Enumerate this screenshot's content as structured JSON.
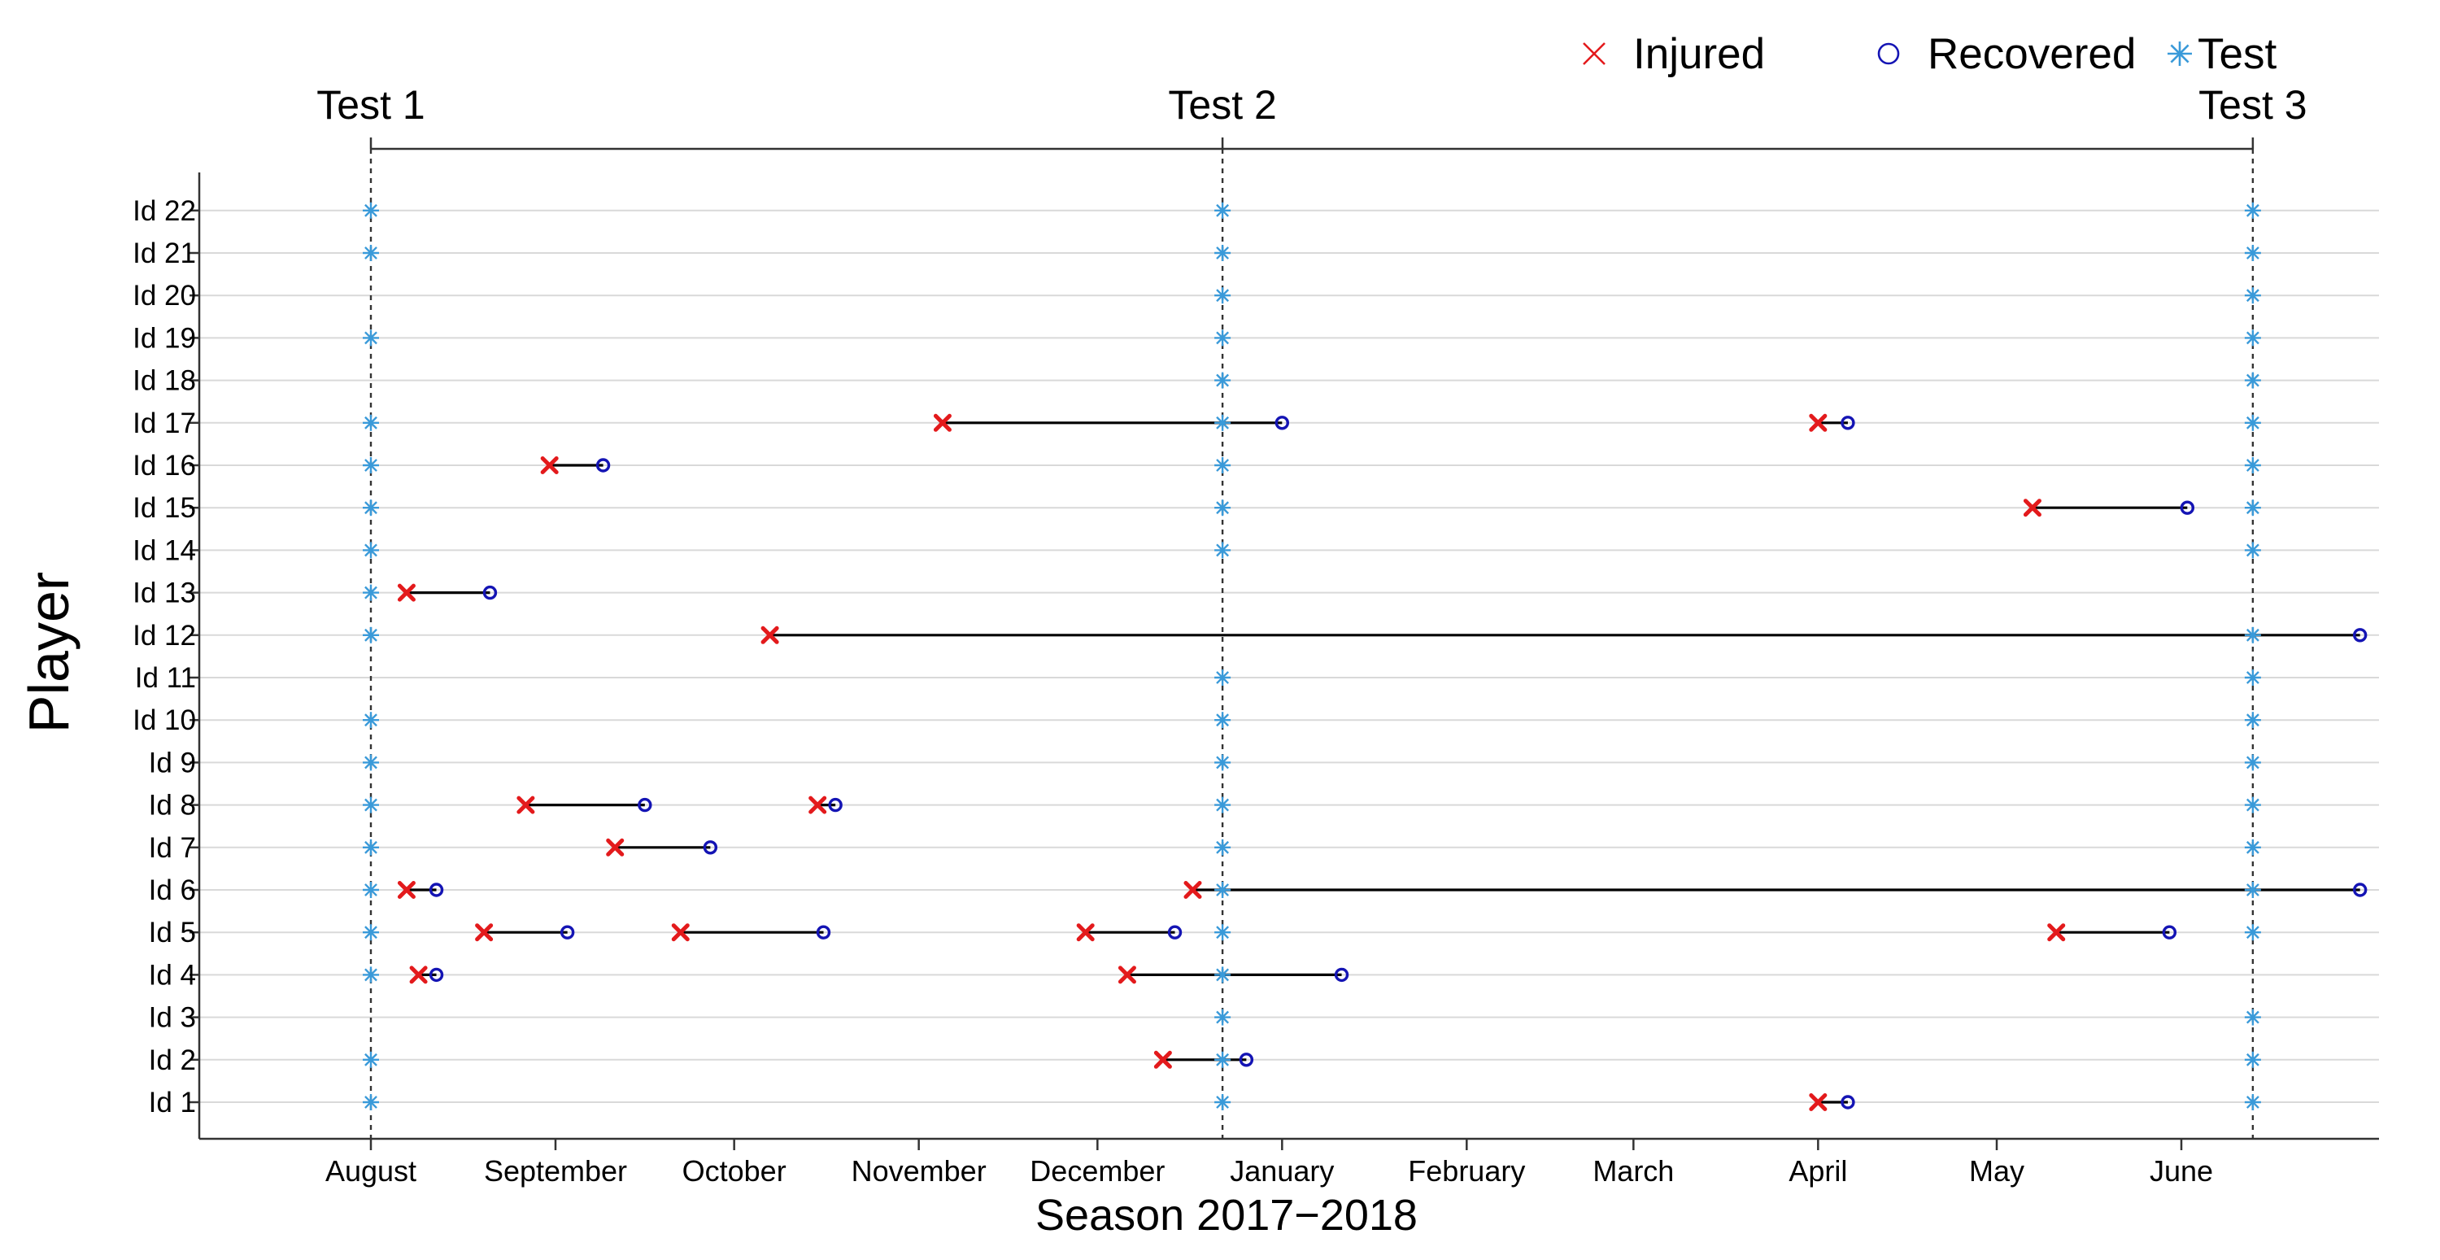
{
  "chart_data": {
    "type": "scatter",
    "title": "",
    "xlabel": "Season 2017−2018",
    "ylabel": "Player",
    "x_axis": {
      "ticks": [
        "2017-08-01",
        "2017-09-01",
        "2017-10-01",
        "2017-11-01",
        "2017-12-01",
        "2018-01-01",
        "2018-02-01",
        "2018-03-01",
        "2018-04-01",
        "2018-05-01",
        "2018-06-01"
      ],
      "tick_labels": [
        "August",
        "September",
        "October",
        "November",
        "December",
        "January",
        "February",
        "March",
        "April",
        "May",
        "June"
      ],
      "range": [
        "2017-07-03",
        "2018-07-14"
      ]
    },
    "players": [
      "Id 1",
      "Id 2",
      "Id 3",
      "Id 4",
      "Id 5",
      "Id 6",
      "Id 7",
      "Id 8",
      "Id 9",
      "Id 10",
      "Id 11",
      "Id 12",
      "Id 13",
      "Id 14",
      "Id 15",
      "Id 16",
      "Id 17",
      "Id 18",
      "Id 19",
      "Id 20",
      "Id 21",
      "Id 22"
    ],
    "tests": [
      {
        "label": "Test 1",
        "date": "2017-08-01"
      },
      {
        "label": "Test 2",
        "date": "2017-12-22"
      },
      {
        "label": "Test 3",
        "date": "2018-06-13"
      }
    ],
    "legend": {
      "position": "top-right",
      "items": [
        {
          "label": "Injured",
          "marker": "x",
          "color": "#e31a1c"
        },
        {
          "label": "Recovered",
          "marker": "circle",
          "color": "#1414b4"
        },
        {
          "label": "Test",
          "marker": "asterisk",
          "color": "#3a9ad9"
        }
      ]
    },
    "colors": {
      "injured": "#e31a1c",
      "recovered": "#1414b4",
      "test": "#3a9ad9",
      "span": "#000000",
      "grid": "#d9d9d9"
    },
    "test_attendance": {
      "Id 1": [
        1,
        2,
        3
      ],
      "Id 2": [
        1,
        2,
        3
      ],
      "Id 3": [
        2,
        3
      ],
      "Id 4": [
        1,
        2
      ],
      "Id 5": [
        1,
        2,
        3
      ],
      "Id 6": [
        1,
        2,
        3
      ],
      "Id 7": [
        1,
        2,
        3
      ],
      "Id 8": [
        1,
        2,
        3
      ],
      "Id 9": [
        1,
        2,
        3
      ],
      "Id 10": [
        1,
        2,
        3
      ],
      "Id 11": [
        2,
        3
      ],
      "Id 12": [
        1,
        3
      ],
      "Id 13": [
        1
      ],
      "Id 14": [
        1,
        2,
        3
      ],
      "Id 15": [
        1,
        2,
        3
      ],
      "Id 16": [
        1,
        2,
        3
      ],
      "Id 17": [
        1,
        2,
        3
      ],
      "Id 18": [
        2,
        3
      ],
      "Id 19": [
        1,
        2,
        3
      ],
      "Id 20": [
        2,
        3
      ],
      "Id 21": [
        1,
        2,
        3
      ],
      "Id 22": [
        1,
        2,
        3
      ]
    },
    "injuries": [
      {
        "player": "Id 1",
        "injured": "2018-04-01",
        "recovered": "2018-04-06"
      },
      {
        "player": "Id 2",
        "injured": "2017-12-12",
        "recovered": "2017-12-26"
      },
      {
        "player": "Id 4",
        "injured": "2017-08-09",
        "recovered": "2017-08-12"
      },
      {
        "player": "Id 4",
        "injured": "2017-12-06",
        "recovered": "2018-01-11"
      },
      {
        "player": "Id 5",
        "injured": "2017-08-20",
        "recovered": "2017-09-03"
      },
      {
        "player": "Id 5",
        "injured": "2017-09-22",
        "recovered": "2017-10-16"
      },
      {
        "player": "Id 5",
        "injured": "2017-11-29",
        "recovered": "2017-12-14"
      },
      {
        "player": "Id 5",
        "injured": "2018-05-11",
        "recovered": "2018-05-30"
      },
      {
        "player": "Id 6",
        "injured": "2017-08-07",
        "recovered": "2017-08-12"
      },
      {
        "player": "Id 6",
        "injured": "2017-12-17",
        "recovered": "2018-07-01"
      },
      {
        "player": "Id 7",
        "injured": "2017-09-11",
        "recovered": "2017-09-27"
      },
      {
        "player": "Id 8",
        "injured": "2017-08-27",
        "recovered": "2017-09-16"
      },
      {
        "player": "Id 8",
        "injured": "2017-10-15",
        "recovered": "2017-10-18"
      },
      {
        "player": "Id 12",
        "injured": "2017-10-07",
        "recovered": "2018-07-01"
      },
      {
        "player": "Id 13",
        "injured": "2017-08-07",
        "recovered": "2017-08-21"
      },
      {
        "player": "Id 15",
        "injured": "2018-05-07",
        "recovered": "2018-06-02"
      },
      {
        "player": "Id 16",
        "injured": "2017-08-31",
        "recovered": "2017-09-09"
      },
      {
        "player": "Id 17",
        "injured": "2017-11-05",
        "recovered": "2018-01-01"
      },
      {
        "player": "Id 17",
        "injured": "2018-04-01",
        "recovered": "2018-04-06"
      }
    ],
    "grid": {
      "horizontal": true,
      "vertical": false
    }
  }
}
